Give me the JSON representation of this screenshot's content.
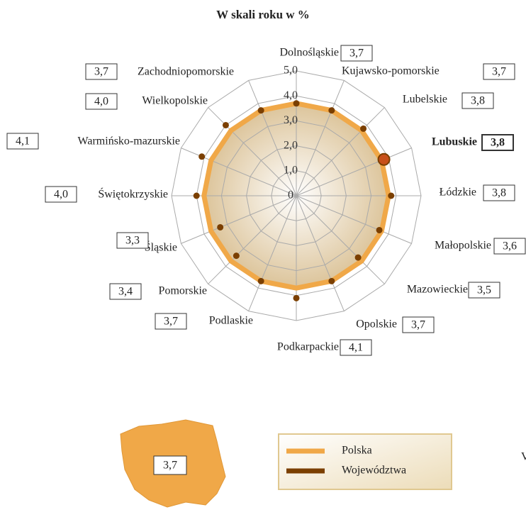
{
  "chart_data": {
    "type": "radar",
    "title": "W skali roku w %",
    "categories": [
      "Dolnośląskie",
      "Kujawsko-pomorskie",
      "Lubelskie",
      "Lubuskie",
      "Łódzkie",
      "Małopolskie",
      "Mazowieckie",
      "Opolskie",
      "Podkarpackie",
      "Podlaskie",
      "Pomorskie",
      "Śląskie",
      "Świętokrzyskie",
      "Warmińsko-mazurskie",
      "Wielkopolskie",
      "Zachodniopomorskie"
    ],
    "series": [
      {
        "name": "Polska",
        "color": "#f0a848",
        "values": [
          3.7,
          3.7,
          3.7,
          3.7,
          3.7,
          3.7,
          3.7,
          3.7,
          3.7,
          3.7,
          3.7,
          3.7,
          3.7,
          3.7,
          3.7,
          3.7
        ]
      },
      {
        "name": "Województwa",
        "color": "#7b3f00",
        "values": [
          3.7,
          3.7,
          3.8,
          3.8,
          3.8,
          3.6,
          3.5,
          3.7,
          4.1,
          3.7,
          3.4,
          3.3,
          4.0,
          4.1,
          4.0,
          3.7
        ],
        "value_labels": [
          "3,7",
          "3,7",
          "3,8",
          "3,8",
          "3,8",
          "3,6",
          "3,5",
          "3,7",
          "4,1",
          "3,7",
          "3,4",
          "3,3",
          "4,0",
          "4,1",
          "4,0",
          "3,7"
        ]
      }
    ],
    "rlim": [
      0,
      5
    ],
    "rticks": [
      0,
      {
        "value": 1,
        "label": "1,0"
      },
      {
        "value": 2,
        "label": "2,0"
      },
      {
        "value": 3,
        "label": "3,0"
      },
      {
        "value": 4,
        "label": "4,0"
      },
      {
        "value": 5,
        "label": "5,0"
      }
    ],
    "highlight": "Lubuskie",
    "national": {
      "value": 3.7,
      "label": "3,7"
    },
    "note": "V",
    "grid": true
  }
}
